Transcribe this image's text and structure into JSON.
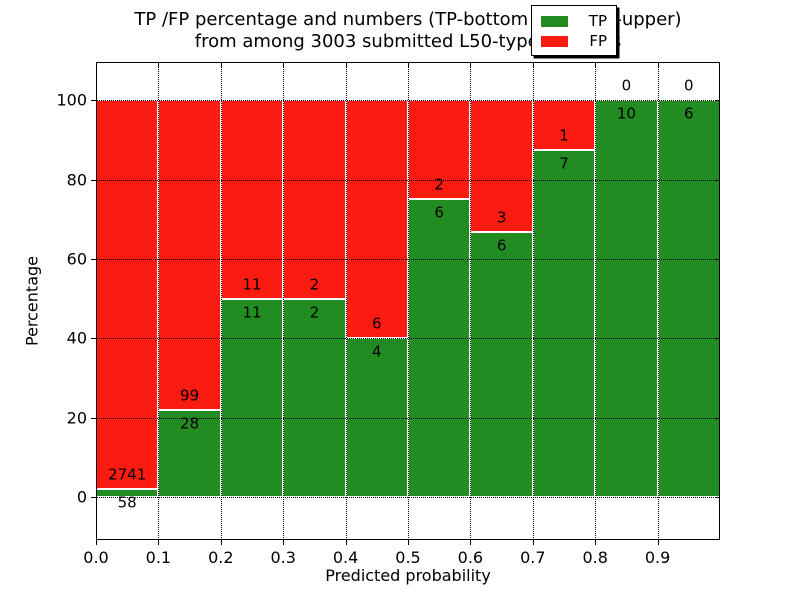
{
  "title": {
    "line1": "TP /FP percentage and numbers (TP-bottom value, FP-upper)",
    "line2": "from among 3003 submitted L50-type contacts"
  },
  "axes": {
    "xlabel": "Predicted probability",
    "ylabel": "Percentage",
    "x_tick_labels": [
      "0.0",
      "0.1",
      "0.2",
      "0.3",
      "0.4",
      "0.5",
      "0.6",
      "0.7",
      "0.8",
      "0.9"
    ],
    "y_tick_labels": [
      "0",
      "20",
      "40",
      "60",
      "80",
      "100"
    ]
  },
  "legend": {
    "position": "upper right",
    "entries": [
      {
        "label": "TP",
        "color": "#228b22"
      },
      {
        "label": "FP",
        "color": "#fb1b10"
      }
    ]
  },
  "chart_data": {
    "type": "bar",
    "stacked": true,
    "normalized": "each bin stacked to 100%",
    "title": "TP /FP percentage and numbers (TP-bottom value, FP-upper) from among 3003 submitted L50-type contacts",
    "xlabel": "Predicted probability",
    "ylabel": "Percentage",
    "categories": [
      "0.0-0.1",
      "0.1-0.2",
      "0.2-0.3",
      "0.3-0.4",
      "0.4-0.5",
      "0.5-0.6",
      "0.6-0.7",
      "0.7-0.8",
      "0.8-0.9",
      "0.9-1.0"
    ],
    "series": [
      {
        "name": "TP",
        "color": "#228b22",
        "counts": [
          58,
          28,
          11,
          2,
          4,
          6,
          6,
          7,
          10,
          6
        ]
      },
      {
        "name": "FP",
        "color": "#fb1b10",
        "counts": [
          2741,
          99,
          11,
          2,
          6,
          2,
          3,
          1,
          0,
          0
        ]
      }
    ],
    "tp_percent_of_bin": [
      2.07,
      22.05,
      50.0,
      50.0,
      40.0,
      75.0,
      66.67,
      87.5,
      100.0,
      100.0
    ],
    "total_submitted": 3003,
    "xlim": [
      0.0,
      1.0
    ],
    "ylim_display": [
      -10.8,
      109.6
    ],
    "y_gridlines": [
      0,
      20,
      40,
      60,
      80,
      100
    ],
    "x_gridlines": [
      0.1,
      0.2,
      0.3,
      0.4,
      0.5,
      0.6,
      0.7,
      0.8,
      0.9
    ],
    "grid_style": "dotted",
    "legend_position": "upper right"
  }
}
